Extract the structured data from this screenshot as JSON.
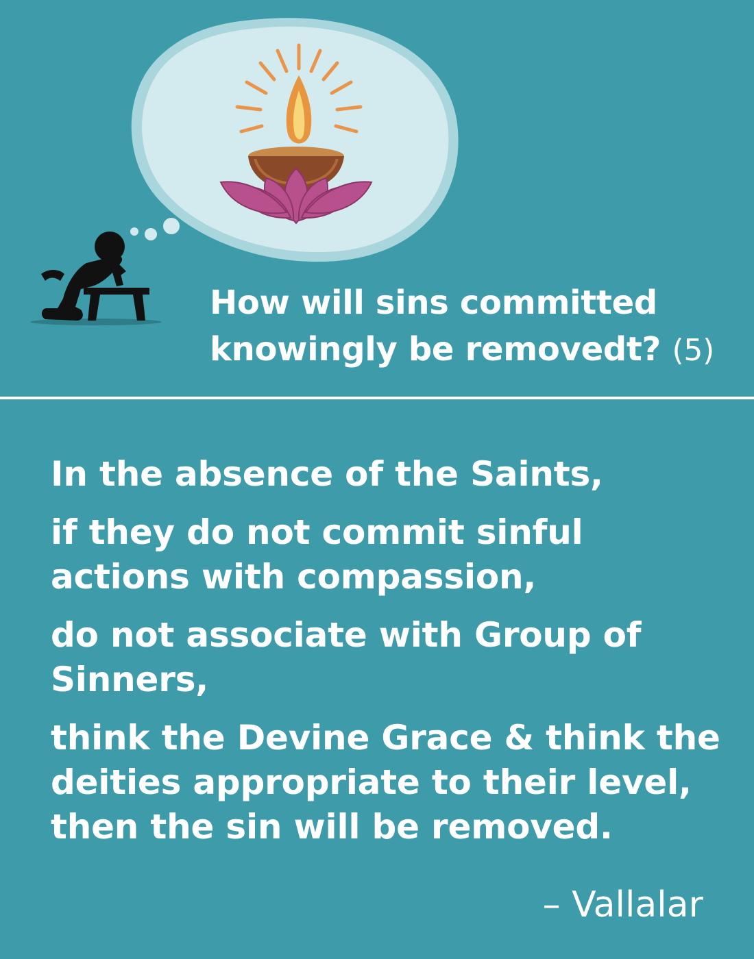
{
  "header": {
    "question": "How will sins committed knowingly be removedt?",
    "question_number": "(5)",
    "icons": {
      "person": "kneeling-praying-person-icon",
      "lamp": "diya-lamp-on-lotus-icon",
      "bubble": "thought-bubble"
    }
  },
  "quote": {
    "lines": [
      "In the absence of the Saints,",
      "if they do not commit sinful actions with compassion,",
      "do not associate with Group of Sinners,",
      "think the Devine Grace & think the deities appropriate to their level, then the sin will be removed."
    ],
    "attribution": "– Vallalar"
  },
  "colors": {
    "background": "#3e9caa",
    "text": "#ffffff",
    "bubble": "#cfe8ec",
    "lotus": "#b9508e",
    "flame": "#f0a040"
  }
}
